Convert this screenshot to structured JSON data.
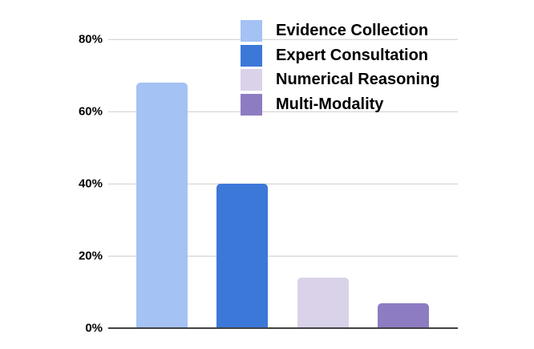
{
  "chart_data": {
    "type": "bar",
    "categories": [
      "Evidence Collection",
      "Expert Consultation",
      "Numerical Reasoning",
      "Multi-Modality"
    ],
    "values": [
      68,
      40,
      14,
      7
    ],
    "value_unit": "%",
    "colors": [
      "#A4C2F4",
      "#3C78D8",
      "#D9D2E9",
      "#8E7CC3"
    ],
    "title": "",
    "xlabel": "",
    "ylabel": "",
    "ylim": [
      0,
      80
    ],
    "yticks": [
      0,
      20,
      40,
      60,
      80
    ],
    "ytick_labels": [
      "0%",
      "20%",
      "40%",
      "60%",
      "80%"
    ],
    "grid": true,
    "gridline_color": "#cccccc",
    "axis_line_color": "#424242",
    "text_color": "#000000",
    "background_color": "#ffffff",
    "legend_position": "top-right"
  }
}
